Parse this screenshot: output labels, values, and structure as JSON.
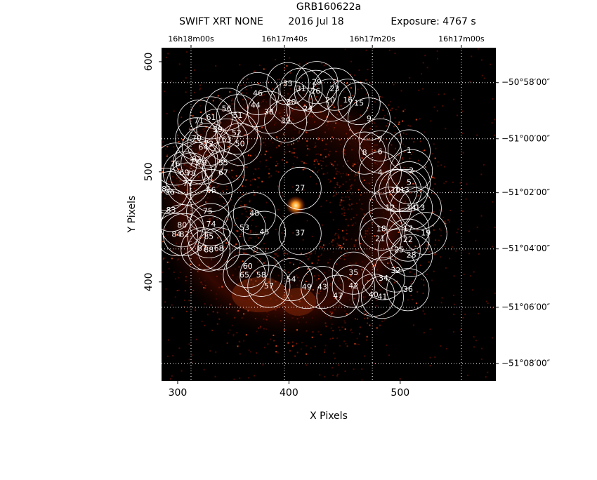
{
  "chart_data": {
    "type": "regions",
    "title": "GRB160622a",
    "instrument": "SWIFT XRT NONE",
    "date": "2016 Jul 18",
    "exposure": "Exposure: 4767 s",
    "xlabel": "X Pixels",
    "ylabel": "Y Pixels",
    "xlim": [
      285.5,
      586
    ],
    "ylim": [
      310,
      612.7
    ],
    "xticks": [
      300,
      400,
      500
    ],
    "yticks": [
      400,
      500,
      600
    ],
    "x2ticks": [
      {
        "value": 312,
        "label": "16h18m00s"
      },
      {
        "value": 396,
        "label": "16h17m40s"
      },
      {
        "value": 475,
        "label": "16h17m20s"
      },
      {
        "value": 555,
        "label": "16h17m00s"
      }
    ],
    "y2ticks": [
      {
        "value": 581,
        "label": "−50°58′00″"
      },
      {
        "value": 530,
        "label": "−51°00′00″"
      },
      {
        "value": 481,
        "label": "−51°02′00″"
      },
      {
        "value": 430,
        "label": "−51°04′00″"
      },
      {
        "value": 377,
        "label": "−51°06′00″"
      },
      {
        "value": 326,
        "label": "−51°08′00″"
      }
    ],
    "grid": true,
    "circle_color": "#ffffff",
    "regions": {
      "radius": 19,
      "labels": [
        "1",
        "2",
        "3",
        "4",
        "5",
        "6",
        "7",
        "8",
        "9",
        "10",
        "11",
        "12",
        "13",
        "14",
        "15",
        "16",
        "17",
        "18",
        "19",
        "20",
        "21",
        "22",
        "23",
        "24",
        "25",
        "26",
        "27",
        "28",
        "29",
        "30",
        "31",
        "32",
        "33",
        "34",
        "35",
        "36",
        "37",
        "38",
        "39",
        "40",
        "41",
        "42",
        "43",
        "44",
        "45",
        "46",
        "47",
        "48",
        "49",
        "50",
        "51",
        "52",
        "53",
        "54",
        "55",
        "56",
        "57",
        "58",
        "59",
        "60",
        "61",
        "62",
        "63",
        "64",
        "65",
        "66",
        "67",
        "68",
        "69",
        "70",
        "71",
        "72",
        "73",
        "74",
        "75",
        "76",
        "77",
        "78",
        "79",
        "80",
        "81",
        "82",
        "83",
        "84",
        "85",
        "86",
        "87",
        "88"
      ],
      "x": [
        508,
        510,
        506,
        482,
        508,
        482,
        482,
        468,
        472,
        496,
        500,
        491,
        518,
        510,
        463,
        453,
        507,
        483,
        523,
        437,
        482,
        507,
        441,
        417,
        499,
        424,
        410,
        510,
        425,
        402,
        411,
        496,
        399,
        485,
        458,
        507,
        410,
        382,
        397,
        476,
        484,
        458,
        430,
        370,
        378,
        372,
        444,
        369,
        416,
        356,
        354,
        353,
        360,
        402,
        341,
        344,
        382,
        375,
        336,
        363,
        330,
        317,
        344,
        323,
        360,
        330,
        341,
        337,
        306,
        317,
        319,
        328,
        315,
        330,
        327,
        298,
        309,
        312,
        322,
        304,
        290,
        306,
        294,
        299,
        328,
        293,
        322,
        328
      ],
      "y": [
        519,
        501,
        483,
        499,
        490,
        518,
        529,
        517,
        548,
        483,
        483,
        467,
        467,
        467,
        562,
        565,
        448,
        448,
        444,
        565,
        439,
        438,
        575,
        557,
        429,
        573,
        485,
        424,
        581,
        563,
        575,
        410,
        580,
        403,
        408,
        393,
        444,
        554,
        546,
        388,
        386,
        396,
        395,
        560,
        445,
        571,
        387,
        462,
        395,
        525,
        551,
        535,
        449,
        402,
        508,
        557,
        396,
        406,
        538,
        414,
        549,
        511,
        529,
        522,
        406,
        483,
        499,
        430,
        499,
        530,
        546,
        525,
        508,
        452,
        464,
        507,
        489,
        498,
        508,
        451,
        484,
        443,
        465,
        443,
        441,
        481,
        430,
        429
      ]
    }
  }
}
